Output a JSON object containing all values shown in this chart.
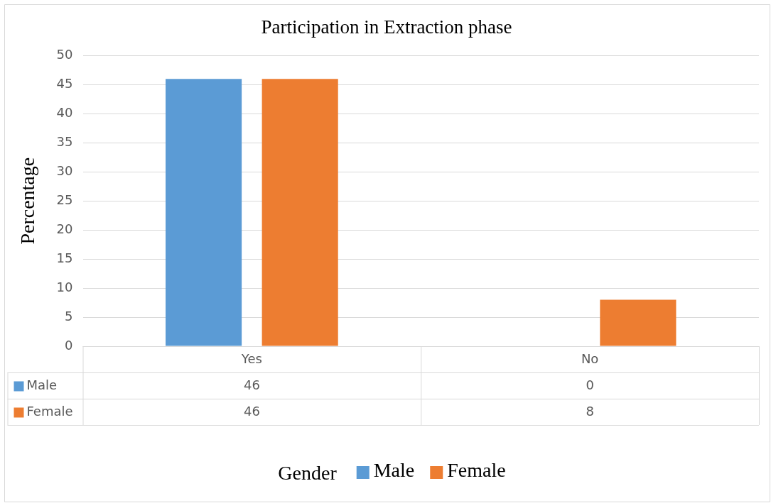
{
  "chart_data": {
    "type": "bar",
    "title": "Participation in Extraction phase",
    "ylabel": "Percentage",
    "legend_title": "Gender",
    "categories": [
      "Yes",
      "No"
    ],
    "series": [
      {
        "name": "Male",
        "color": "#5b9bd5",
        "values": [
          46,
          0
        ]
      },
      {
        "name": "Female",
        "color": "#ed7d31",
        "values": [
          46,
          8
        ]
      }
    ],
    "ylim": [
      0,
      50
    ],
    "yticks": [
      0,
      5,
      10,
      15,
      20,
      25,
      30,
      35,
      40,
      45,
      50
    ],
    "grid": "y",
    "legend": "bottom",
    "data_labels": true
  }
}
